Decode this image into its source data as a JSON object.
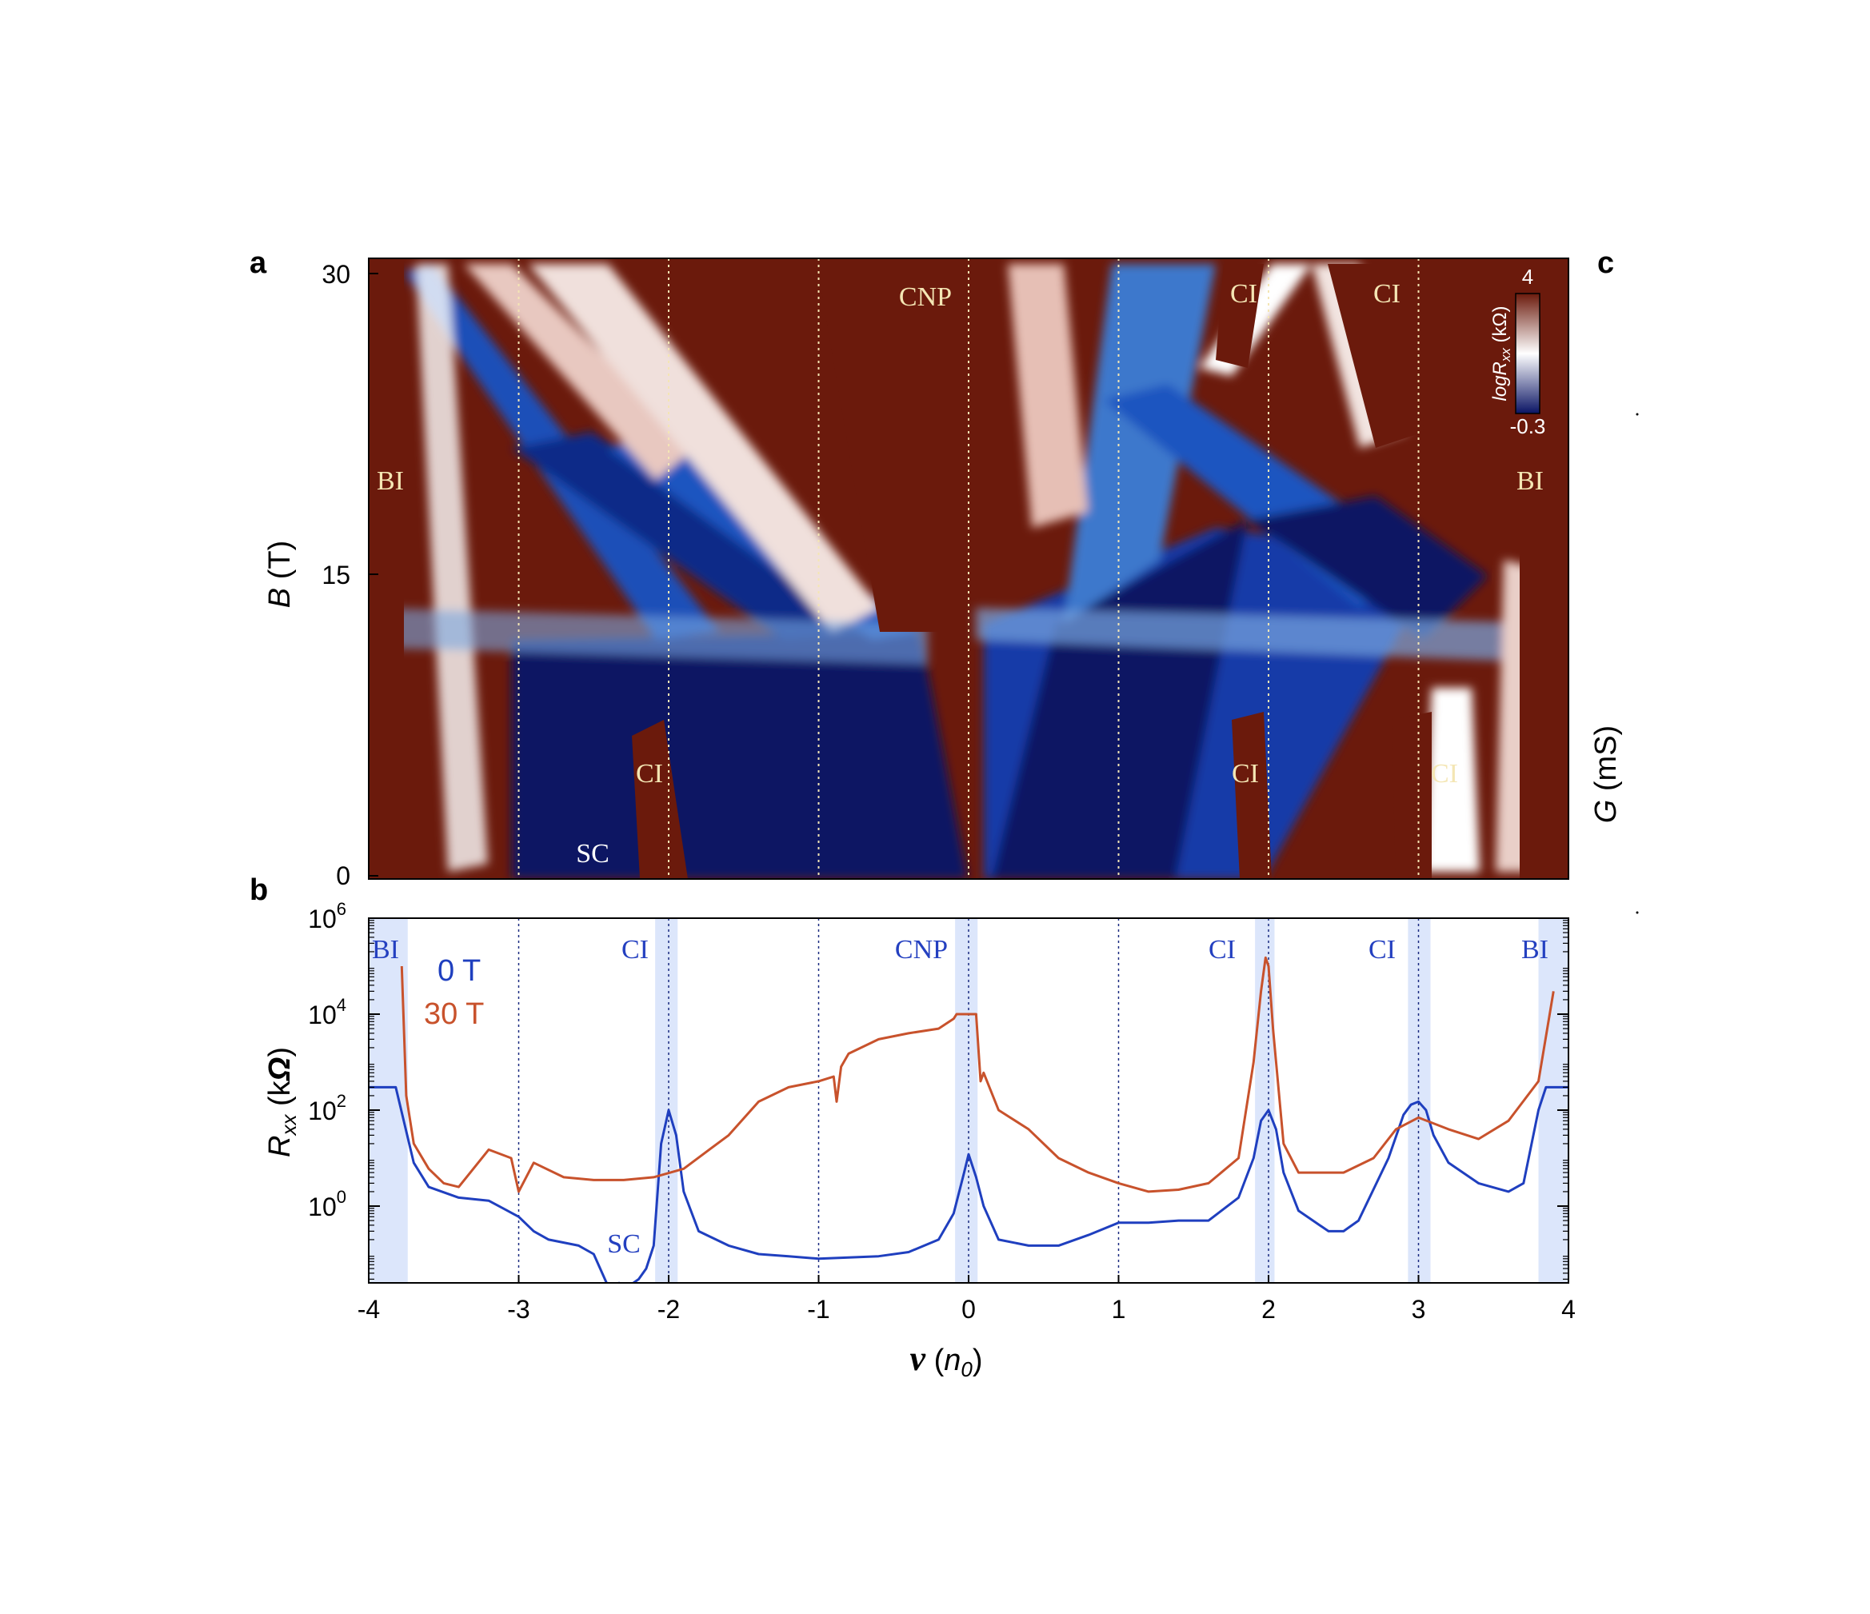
{
  "panels": {
    "a": "a",
    "b": "b",
    "c": "c"
  },
  "colors": {
    "heatmap_high": "#6b1a0c",
    "heatmap_mid": "#ffffff",
    "heatmap_low": "#0a1464",
    "series_0T": "#1f3fbf",
    "series_30T": "#c8522c",
    "annotation_heatmap": "#f4e6b4",
    "annotation_line": "#2440c0",
    "shade": "#dce6fb"
  },
  "heatmap": {
    "ylabel_var": "B",
    "ylabel_unit": "(T)",
    "yticks": [
      "30",
      "15",
      "0"
    ],
    "annotations": [
      "BI",
      "CNP",
      "CI",
      "CI",
      "BI",
      "SC",
      "CI",
      "CI",
      "CI"
    ],
    "colorbar": {
      "max": "4",
      "min": "-0.3",
      "label_prefix": "log",
      "label_var": "R",
      "label_sub": "xx",
      "label_unit": " (kΩ)"
    }
  },
  "panel_c": {
    "ylabel_var": "G",
    "ylabel_unit": " (mS)"
  },
  "chart_data": {
    "type": "line",
    "title": "",
    "xlabel": "ν (n0)",
    "ylabel": "Rxx (kΩ)",
    "xlim": [
      -4,
      4
    ],
    "ylim_log10": [
      -1.6,
      6
    ],
    "yscale": "log",
    "xticks": [
      "-4",
      "-3",
      "-2",
      "-1",
      "0",
      "1",
      "2",
      "3",
      "4"
    ],
    "yticks": [
      {
        "base": "10",
        "exp": "6"
      },
      {
        "base": "10",
        "exp": "4"
      },
      {
        "base": "10",
        "exp": "2"
      },
      {
        "base": "10",
        "exp": "0"
      }
    ],
    "annotations": [
      "BI",
      "CI",
      "CNP",
      "CI",
      "CI",
      "BI",
      "SC"
    ],
    "series": [
      {
        "name": "0 T",
        "x": [
          -4,
          -3.82,
          -3.7,
          -3.6,
          -3.4,
          -3.2,
          -3.0,
          -2.9,
          -2.8,
          -2.6,
          -2.5,
          -2.4,
          -2.33,
          -2.28,
          -2.2,
          -2.15,
          -2.1,
          -2.05,
          -2.0,
          -1.95,
          -1.9,
          -1.8,
          -1.6,
          -1.4,
          -1.2,
          -1.0,
          -0.8,
          -0.6,
          -0.4,
          -0.2,
          -0.1,
          -0.03,
          0.0,
          0.05,
          0.1,
          0.2,
          0.4,
          0.6,
          0.8,
          1.0,
          1.2,
          1.4,
          1.6,
          1.8,
          1.9,
          1.95,
          2.0,
          2.05,
          2.1,
          2.2,
          2.4,
          2.5,
          2.6,
          2.8,
          2.9,
          2.95,
          3.0,
          3.05,
          3.1,
          3.2,
          3.4,
          3.6,
          3.7,
          3.8,
          3.85,
          4.0
        ],
        "y": [
          300,
          300,
          8,
          2.5,
          1.5,
          1.3,
          0.6,
          0.3,
          0.2,
          0.15,
          0.1,
          0.02,
          0.025,
          0.02,
          0.03,
          0.05,
          0.15,
          20,
          100,
          30,
          2,
          0.3,
          0.15,
          0.1,
          0.09,
          0.08,
          0.085,
          0.09,
          0.11,
          0.2,
          0.7,
          5,
          12,
          4,
          1,
          0.2,
          0.15,
          0.15,
          0.25,
          0.45,
          0.45,
          0.5,
          0.5,
          1.5,
          10,
          60,
          100,
          40,
          5,
          0.8,
          0.3,
          0.3,
          0.5,
          10,
          80,
          130,
          150,
          100,
          30,
          8,
          3,
          2,
          3,
          100,
          300,
          300
        ]
      },
      {
        "name": "30 T",
        "x": [
          -3.78,
          -3.75,
          -3.7,
          -3.6,
          -3.5,
          -3.4,
          -3.2,
          -3.05,
          -3.0,
          -2.9,
          -2.7,
          -2.5,
          -2.3,
          -2.1,
          -1.9,
          -1.6,
          -1.4,
          -1.2,
          -1.0,
          -0.9,
          -0.88,
          -0.85,
          -0.8,
          -0.6,
          -0.4,
          -0.2,
          -0.1,
          -0.08,
          0.0,
          0.05,
          0.08,
          0.1,
          0.2,
          0.4,
          0.6,
          0.8,
          1.0,
          1.2,
          1.4,
          1.6,
          1.8,
          1.9,
          1.95,
          1.98,
          2.0,
          2.03,
          2.1,
          2.2,
          2.5,
          2.7,
          2.85,
          3.0,
          3.2,
          3.4,
          3.6,
          3.8,
          3.9
        ],
        "y": [
          100000,
          200,
          20,
          6,
          3,
          2.5,
          15,
          10,
          2,
          8,
          4,
          3.5,
          3.5,
          4,
          6,
          30,
          150,
          300,
          400,
          500,
          150,
          800,
          1500,
          3000,
          4000,
          5000,
          8000,
          10000,
          10000,
          10000,
          400,
          600,
          100,
          40,
          10,
          5,
          3,
          2,
          2.2,
          3,
          10,
          1000,
          30000,
          150000,
          100000,
          5000,
          20,
          5,
          5,
          10,
          40,
          70,
          40,
          25,
          60,
          400,
          30000
        ]
      }
    ],
    "shaded_bands": [
      [
        -4.0,
        -3.74
      ],
      [
        -2.09,
        -1.94
      ],
      [
        -0.09,
        0.06
      ],
      [
        1.91,
        2.04
      ],
      [
        2.93,
        3.08
      ],
      [
        3.8,
        4.0
      ]
    ],
    "dotted_lines": [
      -3,
      -2,
      -1,
      0,
      1,
      2,
      3
    ]
  }
}
